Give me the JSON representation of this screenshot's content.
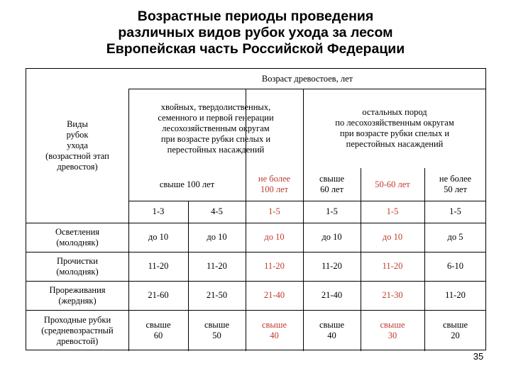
{
  "slide": {
    "title": {
      "line1": "Возрастные периоды проведения",
      "line2": "различных видов рубок ухода за лесом",
      "line3": "Европейская часть Российской Федерации"
    },
    "page_number": "35",
    "accent_color": "#c0392b"
  },
  "table": {
    "header_age": "Возраст древостоев, лет",
    "header_types": "Виды\nрубок\nухода\n(возрастной этап\nдревостоя)",
    "header_group1": "хвойных, твердолиственных,\nсеменного и первой генерации\nлесохозяйственным округам\nпри возрасте рубки спелых и\nперестойных насаждений",
    "header_group2": "остальных пород\nпо лесохозяйственным округам\nпри возрасте рубки спелых и\nперестойных насаждений",
    "age_labels": [
      "свыше 100 лет",
      "не более\n100 лет",
      "свыше\n60 лет",
      "50-60 лет",
      "не более\n50 лет"
    ],
    "class_labels": [
      "1-3",
      "4-5",
      "1-5",
      "1-5",
      "1-5",
      "1-5"
    ],
    "rows": [
      {
        "name": "Осветления\n(молодняк)",
        "values": [
          "до 10",
          "до 10",
          "до 10",
          "до 10",
          "до 10",
          "до 5"
        ]
      },
      {
        "name": "Прочистки\n(молодняк)",
        "values": [
          "11-20",
          "11-20",
          "11-20",
          "11-20",
          "11-20",
          "6-10"
        ]
      },
      {
        "name": "Прореживания\n(жердняк)",
        "values": [
          "21-60",
          "21-50",
          "21-40",
          "21-40",
          "21-30",
          "11-20"
        ]
      },
      {
        "name": "Проходные рубки\n(средневозрастный\nдревостой)",
        "values": [
          "свыше\n60",
          "свыше\n50",
          "свыше\n40",
          "свыше\n40",
          "свыше\n30",
          "свыше\n20"
        ]
      }
    ]
  }
}
